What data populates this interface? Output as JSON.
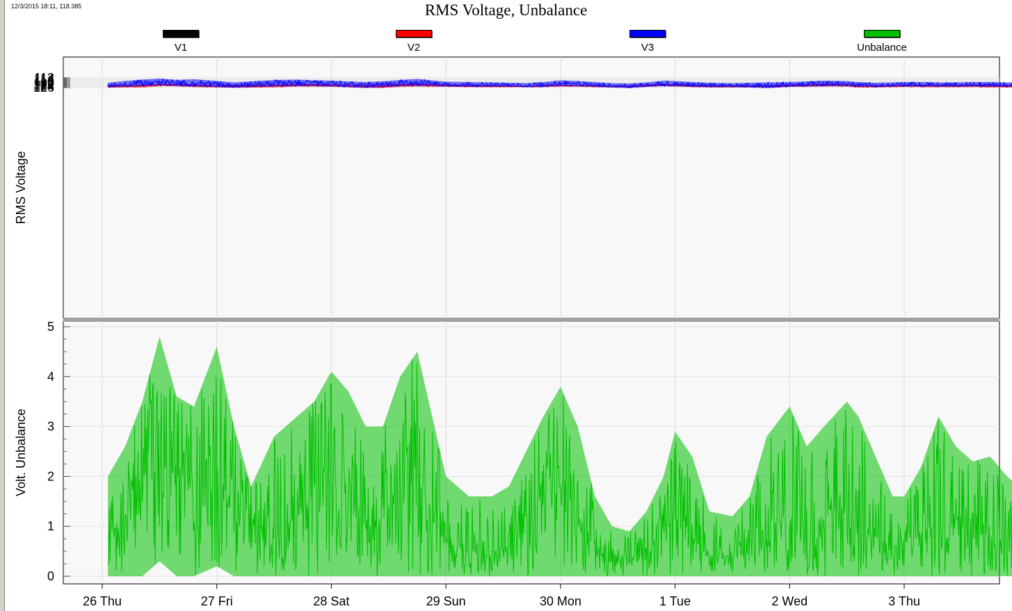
{
  "header": {
    "timestamp": "12/3/2015 18:11, 118.385",
    "title": "RMS Voltage, Unbalance"
  },
  "legend": [
    {
      "label": "V1",
      "color": "#000000"
    },
    {
      "label": "V2",
      "color": "#ff0000"
    },
    {
      "label": "V3",
      "color": "#0000ff"
    },
    {
      "label": "Unbalance",
      "color": "#00c000"
    }
  ],
  "chart_data": [
    {
      "type": "line",
      "ylabel": "RMS Voltage",
      "ylim": [
        112,
        127
      ],
      "yticks": [
        112,
        114,
        116,
        118,
        120,
        122,
        124,
        126
      ],
      "xlim": [
        0,
        8.4
      ],
      "grid": true,
      "series": [
        {
          "name": "V2",
          "color": "#ff0000",
          "x": [
            0.05,
            0.25,
            0.4,
            0.55,
            0.7,
            0.85,
            1.0,
            1.15,
            1.3,
            1.5,
            1.7,
            1.85,
            2.0,
            2.15,
            2.3,
            2.45,
            2.6,
            2.75,
            2.9,
            3.0,
            3.2,
            3.4,
            3.55,
            3.7,
            3.85,
            4.0,
            4.15,
            4.3,
            4.45,
            4.6,
            4.75,
            4.9,
            5.0,
            5.15,
            5.3,
            5.5,
            5.65,
            5.8,
            6.0,
            6.15,
            6.3,
            6.5,
            6.6,
            6.75,
            6.9,
            7.0,
            7.15,
            7.3,
            7.45,
            7.6,
            7.75,
            7.9,
            8.0,
            8.15,
            8.3,
            8.42
          ],
          "y": [
            124.8,
            124.5,
            123.8,
            121.5,
            122.0,
            123.5,
            124.0,
            124.5,
            124.0,
            123.5,
            122.0,
            122.5,
            123.0,
            124.0,
            124.5,
            124.0,
            122.5,
            122.0,
            123.0,
            123.5,
            124.0,
            124.2,
            124.5,
            124.8,
            124.0,
            123.5,
            123.8,
            124.5,
            124.6,
            124.3,
            123.2,
            122.5,
            123.0,
            123.8,
            124.5,
            124.8,
            124.5,
            124.0,
            123.5,
            123.0,
            122.0,
            123.0,
            124.2,
            124.5,
            124.0,
            123.5,
            124.0,
            124.2,
            124.0,
            123.5,
            124.0,
            124.5,
            124.8,
            124.5,
            124.0,
            123.5
          ],
          "max": [
            126.0,
            125.8,
            125.2,
            123.8,
            124.5,
            125.5,
            125.8,
            126.1,
            126.0,
            125.8,
            124.5,
            124.6,
            125.0,
            125.5,
            126.2,
            126.5,
            125.0,
            124.5,
            124.8,
            124.8,
            125.2,
            125.5,
            125.2,
            125.3,
            125.3,
            124.5,
            124.8,
            125.4,
            125.6,
            125.8,
            124.8,
            124.0,
            124.3,
            125.2,
            125.6,
            125.8,
            125.5,
            125.5,
            125.0,
            124.8,
            124.5,
            124.5,
            125.8,
            125.8,
            125.5,
            125.0,
            125.2,
            125.4,
            125.5,
            125.3,
            125.8,
            125.9,
            126.1,
            125.2,
            125.0,
            124.9
          ],
          "min": [
            122.5,
            122.0,
            121.0,
            120.0,
            120.5,
            121.5,
            122.5,
            122.0,
            121.8,
            121.5,
            120.5,
            121.0,
            121.0,
            121.5,
            122.0,
            121.5,
            120.5,
            120.0,
            121.0,
            121.5,
            122.5,
            122.8,
            123.0,
            123.2,
            122.5,
            122.0,
            122.2,
            123.0,
            123.2,
            122.8,
            121.5,
            121.0,
            121.5,
            122.2,
            123.0,
            123.2,
            123.0,
            122.5,
            122.0,
            121.5,
            120.5,
            121.5,
            122.8,
            123.0,
            122.5,
            122.0,
            122.5,
            122.8,
            122.5,
            122.0,
            122.5,
            123.0,
            123.2,
            123.0,
            122.5,
            122.0
          ]
        },
        {
          "name": "V3",
          "color": "#0000ff",
          "x": [
            0.05,
            0.2,
            0.35,
            0.5,
            0.65,
            0.8,
            1.0,
            1.15,
            1.3,
            1.5,
            1.7,
            1.85,
            2.0,
            2.15,
            2.3,
            2.45,
            2.6,
            2.75,
            2.9,
            3.0,
            3.2,
            3.4,
            3.55,
            3.7,
            3.85,
            4.0,
            4.15,
            4.3,
            4.45,
            4.6,
            4.75,
            4.9,
            5.0,
            5.15,
            5.3,
            5.5,
            5.65,
            5.8,
            6.0,
            6.15,
            6.3,
            6.5,
            6.6,
            6.75,
            6.9,
            7.0,
            7.15,
            7.3,
            7.45,
            7.6,
            7.75,
            7.9,
            8.0,
            8.15,
            8.3,
            8.42
          ],
          "y": [
            123.0,
            121.5,
            119.5,
            117.5,
            118.5,
            119.5,
            120.5,
            122.5,
            121.5,
            119.5,
            118.5,
            119.0,
            120.0,
            121.0,
            122.0,
            121.5,
            119.0,
            117.5,
            119.5,
            121.0,
            122.0,
            122.5,
            123.0,
            123.5,
            122.0,
            120.5,
            121.0,
            122.5,
            123.5,
            123.8,
            122.5,
            121.0,
            121.0,
            122.0,
            123.0,
            123.5,
            123.5,
            123.0,
            122.0,
            121.5,
            120.0,
            120.5,
            122.0,
            123.0,
            122.5,
            122.0,
            122.0,
            122.5,
            122.5,
            122.0,
            122.5,
            123.0,
            123.0,
            122.5,
            122.0,
            121.0
          ],
          "max": [
            125.8,
            125.0,
            124.0,
            123.0,
            124.0,
            124.5,
            125.5,
            126.0,
            125.5,
            124.5,
            124.0,
            124.0,
            124.5,
            125.5,
            126.5,
            125.5,
            124.0,
            123.5,
            124.0,
            124.5,
            125.0,
            125.0,
            124.8,
            125.5,
            125.0,
            124.0,
            124.2,
            125.0,
            126.0,
            126.7,
            125.0,
            124.0,
            124.2,
            125.0,
            125.5,
            125.5,
            125.8,
            126.8,
            125.0,
            124.5,
            124.0,
            124.0,
            125.0,
            125.2,
            124.8,
            124.5,
            124.5,
            124.8,
            124.8,
            124.5,
            124.8,
            125.0,
            125.3,
            124.8,
            124.5,
            124.0
          ],
          "min": [
            119.0,
            116.5,
            114.5,
            113.0,
            115.0,
            114.0,
            116.5,
            118.5,
            117.0,
            115.0,
            114.5,
            115.5,
            116.0,
            117.0,
            118.0,
            117.0,
            115.0,
            113.5,
            116.0,
            117.5,
            118.0,
            118.5,
            119.0,
            119.5,
            118.0,
            115.5,
            116.5,
            118.0,
            119.5,
            120.0,
            118.5,
            116.0,
            116.5,
            118.0,
            119.0,
            119.5,
            119.0,
            118.5,
            118.0,
            117.0,
            116.0,
            116.5,
            118.0,
            119.0,
            118.5,
            118.0,
            118.0,
            118.5,
            118.5,
            118.0,
            118.0,
            118.5,
            118.5,
            118.0,
            117.5,
            116.2
          ]
        }
      ]
    },
    {
      "type": "line",
      "ylabel": "Volt. Unbalance",
      "ylim": [
        -0.1,
        5
      ],
      "yticks": [
        0,
        1,
        2,
        3,
        4,
        5
      ],
      "xlim": [
        0,
        8.4
      ],
      "xticks": [
        "26 Thu",
        "27 Fri",
        "28 Sat",
        "29 Sun",
        "30 Mon",
        "1 Tue",
        "2 Wed",
        "3 Thu"
      ],
      "grid": true,
      "series": [
        {
          "name": "Unbalance",
          "color": "#00c000",
          "x": [
            0.05,
            0.2,
            0.35,
            0.5,
            0.65,
            0.8,
            1.0,
            1.15,
            1.3,
            1.5,
            1.7,
            1.85,
            2.0,
            2.15,
            2.3,
            2.45,
            2.6,
            2.75,
            2.9,
            3.0,
            3.2,
            3.4,
            3.55,
            3.7,
            3.85,
            4.0,
            4.15,
            4.3,
            4.45,
            4.6,
            4.75,
            4.9,
            5.0,
            5.15,
            5.3,
            5.5,
            5.65,
            5.8,
            6.0,
            6.15,
            6.3,
            6.5,
            6.6,
            6.75,
            6.9,
            7.0,
            7.15,
            7.3,
            7.45,
            7.6,
            7.75,
            7.9,
            8.0,
            8.15,
            8.3,
            8.42
          ],
          "y": [
            0.8,
            1.2,
            1.8,
            2.3,
            2.0,
            1.8,
            2.2,
            1.2,
            0.6,
            0.8,
            1.2,
            1.5,
            1.8,
            1.5,
            1.0,
            1.2,
            1.8,
            2.0,
            1.2,
            0.7,
            0.5,
            0.5,
            0.6,
            0.9,
            1.5,
            1.8,
            1.2,
            0.6,
            0.3,
            0.3,
            0.5,
            0.9,
            1.2,
            0.8,
            0.4,
            0.4,
            0.6,
            1.0,
            1.2,
            1.0,
            1.2,
            1.4,
            1.2,
            0.8,
            0.6,
            0.7,
            0.9,
            1.0,
            1.0,
            0.8,
            0.8,
            0.7,
            0.6,
            0.7,
            0.8,
            1.0
          ],
          "max": [
            2.0,
            2.6,
            3.5,
            4.8,
            3.6,
            3.4,
            4.6,
            3.0,
            1.8,
            2.8,
            3.2,
            3.5,
            4.1,
            3.7,
            3.0,
            3.0,
            4.0,
            4.5,
            3.0,
            2.0,
            1.6,
            1.6,
            1.8,
            2.5,
            3.2,
            3.8,
            3.0,
            1.6,
            1.0,
            0.9,
            1.3,
            2.0,
            2.9,
            2.4,
            1.3,
            1.2,
            1.6,
            2.8,
            3.4,
            2.6,
            3.0,
            3.5,
            3.2,
            2.4,
            1.6,
            1.6,
            2.2,
            3.2,
            2.6,
            2.3,
            2.4,
            2.0,
            1.8,
            1.9,
            2.2,
            2.9
          ],
          "min": [
            0.0,
            0.0,
            0.0,
            0.3,
            0.0,
            0.0,
            0.2,
            0.0,
            0.0,
            0.0,
            0.0,
            0.0,
            0.0,
            0.0,
            0.0,
            0.0,
            0.0,
            0.0,
            0.0,
            0.0,
            0.0,
            0.0,
            0.0,
            0.0,
            0.0,
            0.0,
            0.0,
            0.0,
            0.0,
            0.0,
            0.0,
            0.0,
            0.0,
            0.0,
            0.0,
            0.0,
            0.0,
            0.0,
            0.0,
            0.0,
            0.0,
            0.0,
            0.0,
            0.0,
            0.0,
            0.0,
            0.0,
            0.0,
            0.0,
            0.0,
            0.0,
            0.0,
            0.0,
            0.0,
            0.0,
            0.0
          ]
        }
      ]
    }
  ]
}
